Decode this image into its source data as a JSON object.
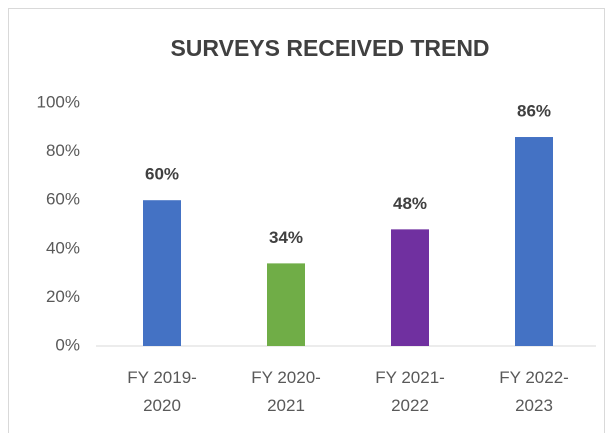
{
  "chart_data": {
    "type": "bar",
    "title": "SURVEYS RECEIVED TREND",
    "categories": [
      "FY 2019-2020",
      "FY 2020-2021",
      "FY 2021-2022",
      "FY 2022-2023"
    ],
    "values": [
      60,
      34,
      48,
      86
    ],
    "value_labels": [
      "60%",
      "34%",
      "48%",
      "86%"
    ],
    "colors": [
      "#4472c4",
      "#70ad47",
      "#7030a0",
      "#4472c4"
    ],
    "ylim": [
      0,
      100
    ],
    "yticks": [
      {
        "value": 0,
        "label": "0%"
      },
      {
        "value": 20,
        "label": "20%"
      },
      {
        "value": 40,
        "label": "40%"
      },
      {
        "value": 60,
        "label": "60%"
      },
      {
        "value": 80,
        "label": "80%"
      },
      {
        "value": 100,
        "label": "100%"
      }
    ],
    "grid": false
  }
}
